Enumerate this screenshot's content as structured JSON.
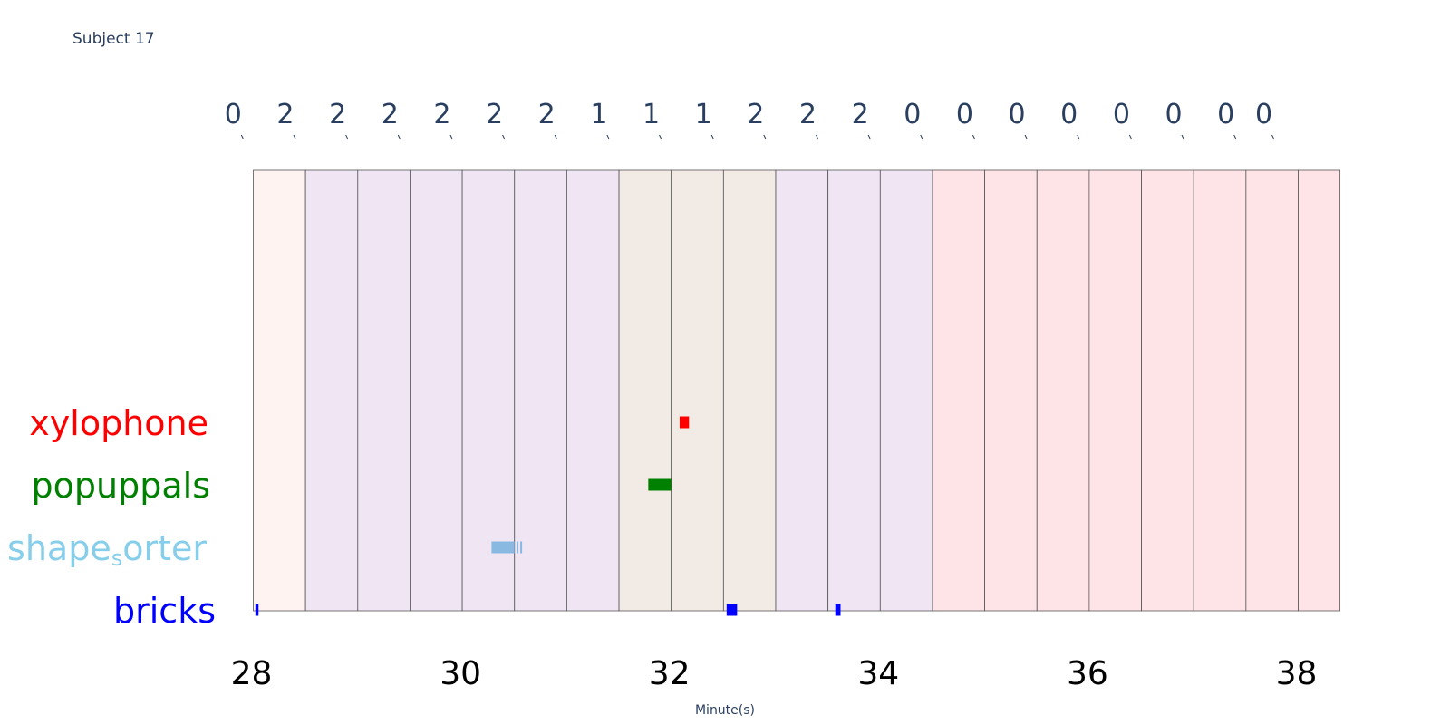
{
  "subject": "Subject 17",
  "chart_data": {
    "type": "timeline",
    "xlabel": "Minute(s)",
    "xlim": [
      27.55,
      38.8
    ],
    "x_ticks": [
      28,
      30,
      32,
      34,
      36,
      38
    ],
    "x_tick_labels": [
      "28",
      "30",
      "32",
      "34",
      "36",
      "38"
    ],
    "segments": [
      {
        "start": 28.0,
        "end": 28.5,
        "label": "0",
        "color": "#fff3f2"
      },
      {
        "start": 28.5,
        "end": 29.0,
        "label": "2",
        "color": "#f0e6f3"
      },
      {
        "start": 29.0,
        "end": 29.5,
        "label": "2",
        "color": "#f0e6f3"
      },
      {
        "start": 29.5,
        "end": 30.0,
        "label": "2",
        "color": "#f0e6f3"
      },
      {
        "start": 30.0,
        "end": 30.5,
        "label": "2",
        "color": "#f0e6f3"
      },
      {
        "start": 30.5,
        "end": 31.0,
        "label": "2",
        "color": "#f0e6f3"
      },
      {
        "start": 31.0,
        "end": 31.5,
        "label": "2",
        "color": "#f0e6f3"
      },
      {
        "start": 31.5,
        "end": 32.0,
        "label": "1",
        "color": "#f2ebe5"
      },
      {
        "start": 32.0,
        "end": 32.5,
        "label": "1",
        "color": "#f2ebe5"
      },
      {
        "start": 32.5,
        "end": 33.0,
        "label": "1",
        "color": "#f2ebe5"
      },
      {
        "start": 33.0,
        "end": 33.5,
        "label": "2",
        "color": "#f0e6f3"
      },
      {
        "start": 33.5,
        "end": 34.0,
        "label": "2",
        "color": "#f0e6f3"
      },
      {
        "start": 34.0,
        "end": 34.5,
        "label": "2",
        "color": "#f0e6f3"
      },
      {
        "start": 34.5,
        "end": 35.0,
        "label": "0",
        "color": "#ffe4e7"
      },
      {
        "start": 35.0,
        "end": 35.5,
        "label": "0",
        "color": "#ffe4e7"
      },
      {
        "start": 35.5,
        "end": 36.0,
        "label": "0",
        "color": "#ffe4e7"
      },
      {
        "start": 36.0,
        "end": 36.5,
        "label": "0",
        "color": "#ffe4e7"
      },
      {
        "start": 36.5,
        "end": 37.0,
        "label": "0",
        "color": "#ffe4e7"
      },
      {
        "start": 37.0,
        "end": 37.5,
        "label": "0",
        "color": "#ffe4e7"
      },
      {
        "start": 37.5,
        "end": 38.0,
        "label": "0",
        "color": "#ffe4e7"
      },
      {
        "start": 38.0,
        "end": 38.4,
        "label": "0",
        "color": "#ffe4e7"
      }
    ],
    "series": [
      {
        "name": "xylophone",
        "color": "#ff0000",
        "events": [
          {
            "start": 32.08,
            "end": 32.17
          }
        ]
      },
      {
        "name": "popuppals",
        "color": "#008000",
        "events": [
          {
            "start": 31.78,
            "end": 32.0
          }
        ]
      },
      {
        "name": "shapesorter",
        "display": [
          "shape",
          "s",
          "orter"
        ],
        "color": "#87ceeb",
        "bar_color": "#89b8e0",
        "events": [
          {
            "start": 30.28,
            "end": 30.5
          },
          {
            "start": 30.52,
            "end": 30.535
          },
          {
            "start": 30.555,
            "end": 30.57
          }
        ]
      },
      {
        "name": "bricks",
        "color": "#0000ff",
        "events": [
          {
            "start": 28.02,
            "end": 28.05
          },
          {
            "start": 32.53,
            "end": 32.63
          },
          {
            "start": 33.57,
            "end": 33.62
          }
        ]
      }
    ]
  }
}
